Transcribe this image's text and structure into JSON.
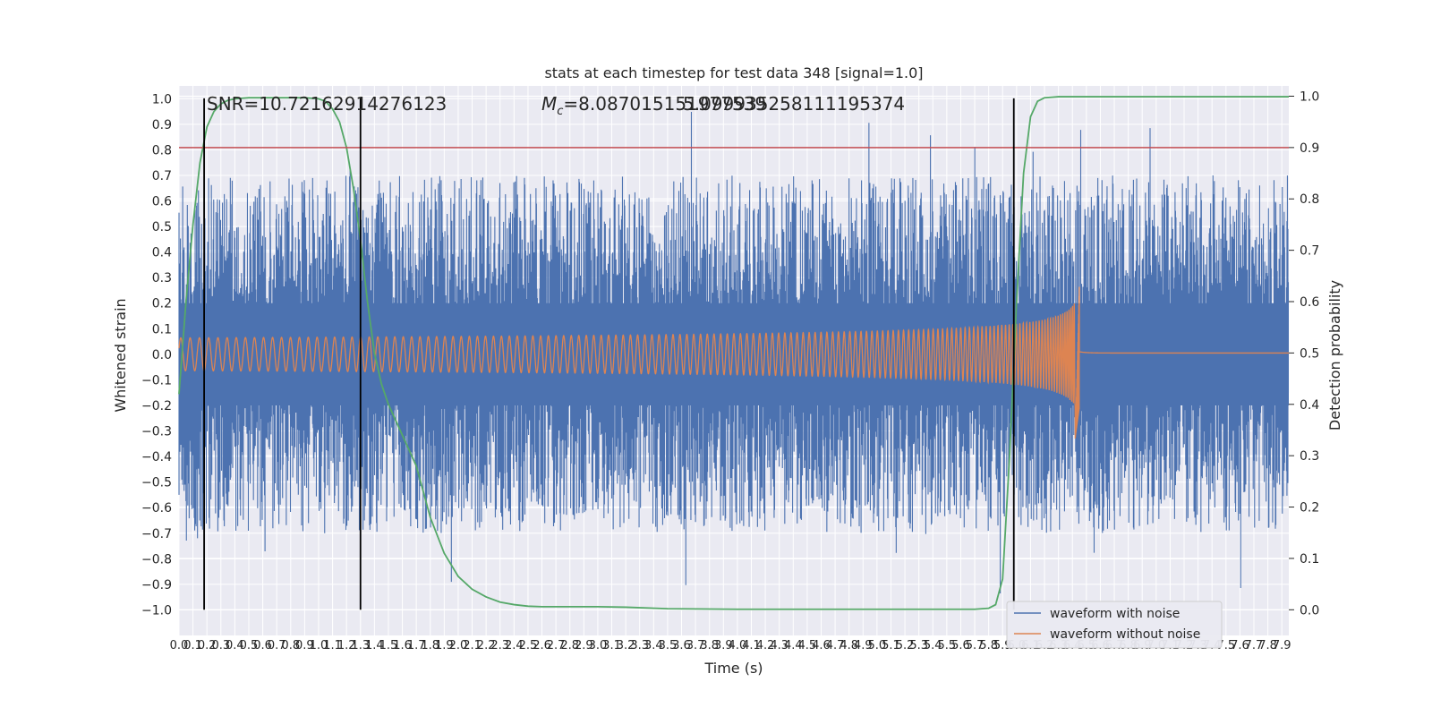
{
  "chart_data": {
    "type": "line",
    "title": "stats at each timestep for test data 348 [signal=1.0]",
    "xlabel": "Time (s)",
    "ylabel_left": "Whitened strain",
    "ylabel_right": "Detection probability",
    "xlim": [
      0.0,
      7.95
    ],
    "ylim_left": [
      -1.1,
      1.05
    ],
    "ylim_right": [
      -0.05,
      1.02
    ],
    "x_ticks": [
      "0.0",
      "0.1",
      "0.2",
      "0.3",
      "0.4",
      "0.5",
      "0.6",
      "0.7",
      "0.8",
      "0.9",
      "1.0",
      "1.1",
      "1.2",
      "1.3",
      "1.4",
      "1.5",
      "1.6",
      "1.7",
      "1.8",
      "1.9",
      "2.0",
      "2.1",
      "2.2",
      "2.3",
      "2.4",
      "2.5",
      "2.6",
      "2.7",
      "2.8",
      "2.9",
      "3.0",
      "3.1",
      "3.2",
      "3.3",
      "3.4",
      "3.5",
      "3.6",
      "3.7",
      "3.8",
      "3.9",
      "4.0",
      "4.1",
      "4.2",
      "4.3",
      "4.4",
      "4.5",
      "4.6",
      "4.7",
      "4.8",
      "4.9",
      "5.0",
      "5.1",
      "5.2",
      "5.3",
      "5.4",
      "5.5",
      "5.6",
      "5.7",
      "5.8",
      "5.9",
      "6.0",
      "6.1",
      "6.2",
      "6.3",
      "6.4",
      "6.5",
      "6.6",
      "6.7",
      "6.8",
      "6.9",
      "7.0",
      "7.1",
      "7.2",
      "7.3",
      "7.4",
      "7.5",
      "7.6",
      "7.7",
      "7.8",
      "7.9"
    ],
    "y_ticks_left": [
      "1.0",
      "0.9",
      "0.8",
      "0.7",
      "0.6",
      "0.5",
      "0.4",
      "0.3",
      "0.2",
      "0.1",
      "0.0",
      "−0.1",
      "−0.2",
      "−0.3",
      "−0.4",
      "−0.5",
      "−0.6",
      "−0.7",
      "−0.8",
      "−0.9",
      "−1.0"
    ],
    "y_ticks_right": [
      "1.0",
      "0.9",
      "0.8",
      "0.7",
      "0.6",
      "0.5",
      "0.4",
      "0.3",
      "0.2",
      "0.1",
      "0.0"
    ],
    "annotations": {
      "snr": "SNR=10.72162914276123",
      "mc_prefix": "M",
      "mc_sub": "c",
      "mc_value": "=8.087015151977539",
      "overlap": "5.099935258111195374"
    },
    "series": [
      {
        "name": "waveform with noise",
        "color": "#4c72b0",
        "axis": "left",
        "kind": "noise",
        "amplitude_range": [
          -1.0,
          0.95
        ]
      },
      {
        "name": "waveform without noise",
        "color": "#dd8452",
        "axis": "left",
        "kind": "chirp",
        "merger_time": 6.45,
        "peak_range": [
          -0.33,
          0.28
        ]
      },
      {
        "name": "",
        "color": "#55a868",
        "axis": "right",
        "x": [
          0.0,
          0.05,
          0.1,
          0.15,
          0.2,
          0.25,
          0.3,
          0.35,
          0.4,
          0.5,
          0.6,
          0.7,
          0.8,
          0.9,
          1.0,
          1.05,
          1.1,
          1.15,
          1.2,
          1.25,
          1.3,
          1.35,
          1.4,
          1.45,
          1.5,
          1.55,
          1.6,
          1.7,
          1.8,
          1.9,
          2.0,
          2.1,
          2.2,
          2.3,
          2.4,
          2.5,
          2.6,
          2.8,
          3.0,
          3.2,
          3.5,
          4.0,
          5.0,
          5.7,
          5.8,
          5.85,
          5.9,
          5.95,
          6.0,
          6.05,
          6.1,
          6.15,
          6.2,
          6.3,
          6.5,
          7.0,
          7.95
        ],
        "y": [
          0.42,
          0.6,
          0.75,
          0.87,
          0.94,
          0.97,
          0.985,
          0.992,
          0.995,
          0.997,
          0.997,
          0.997,
          0.997,
          0.997,
          0.995,
          0.99,
          0.975,
          0.95,
          0.9,
          0.82,
          0.72,
          0.6,
          0.5,
          0.44,
          0.4,
          0.37,
          0.34,
          0.28,
          0.18,
          0.11,
          0.065,
          0.04,
          0.025,
          0.015,
          0.01,
          0.007,
          0.006,
          0.006,
          0.006,
          0.005,
          0.002,
          0.001,
          0.001,
          0.001,
          0.003,
          0.01,
          0.06,
          0.3,
          0.6,
          0.85,
          0.96,
          0.99,
          0.997,
          0.999,
          0.999,
          0.999,
          0.999
        ]
      }
    ],
    "hlines": [
      {
        "y": 0.9,
        "axis": "right",
        "color": "#c44e52"
      }
    ],
    "vlines": [
      {
        "x": 0.18,
        "y_range": [
          0.0,
          0.9
        ]
      },
      {
        "x": 1.3,
        "y_range": [
          0.0,
          0.9
        ]
      },
      {
        "x": 5.98,
        "y_range": [
          0.0,
          0.9
        ]
      }
    ],
    "legend": {
      "placement": "lower-right"
    },
    "grid": true
  }
}
